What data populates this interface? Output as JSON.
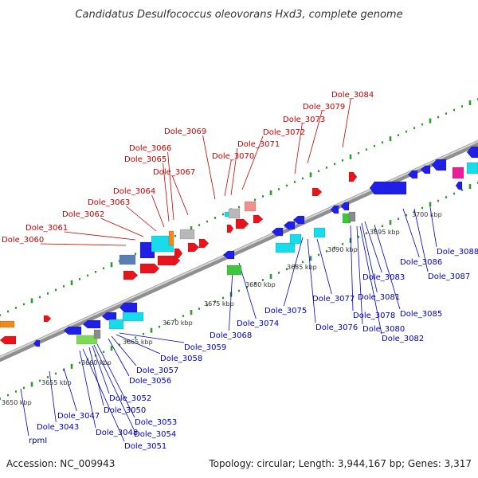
{
  "title": "Candidatus Desulfococcus oleovorans Hxd3, complete genome",
  "accession": "Accession: NC_009943",
  "topology": "Topology: circular; Length: 3,944,167 bp; Genes: 3,317",
  "colors": {
    "top_strand_label": "#cc0000",
    "bottom_strand_label": "#0000cc",
    "dots": "#2e9b2e",
    "backbone": "#9a9a9a"
  },
  "kbp_labels": [
    "3650 kbp",
    "3655 kbp",
    "3660 kbp",
    "3665 kbp",
    "3670 kbp",
    "3675 kbp",
    "3680 kbp",
    "3685 kbp",
    "3690 kbp",
    "3695 kbp",
    "3700 kbp"
  ],
  "top_labels": [
    "Dole_3084",
    "Dole_3079",
    "Dole_3073",
    "Dole_3072",
    "Dole_3071",
    "Dole_3069",
    "Dole_3070",
    "Dole_3066",
    "Dole_3065",
    "Dole_3067",
    "Dole_3064",
    "Dole_3063",
    "Dole_3062",
    "Dole_3061",
    "Dole_3060"
  ],
  "bottom_labels": [
    "Dole_3088",
    "Dole_3086",
    "Dole_3087",
    "Dole_3083",
    "Dole_3081",
    "Dole_3085",
    "Dole_3078",
    "Dole_3080",
    "Dole_3082",
    "Dole_3077",
    "Dole_3076",
    "Dole_3075",
    "Dole_3074",
    "Dole_3068",
    "Dole_3059",
    "Dole_3058",
    "Dole_3057",
    "Dole_3056",
    "Dole_3052",
    "Dole_3050",
    "Dole_3053",
    "Dole_3054",
    "Dole_3051",
    "Dole_3048",
    "Dole_3047",
    "Dole_3043",
    "rpmI"
  ]
}
